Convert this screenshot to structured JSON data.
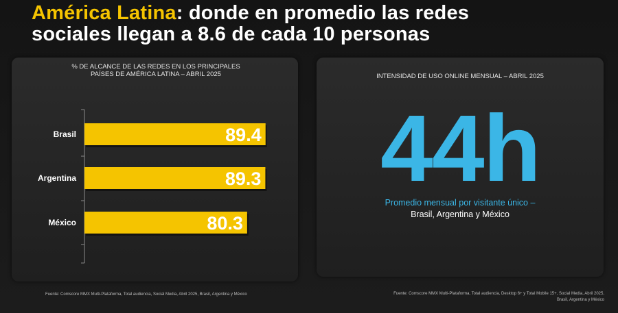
{
  "title": {
    "highlight": "América Latina",
    "rest_line1": ": donde en promedio las redes",
    "line2": "sociales llegan a 8.6 de cada 10 personas"
  },
  "left_panel": {
    "heading_line1": "% DE ALCANCE DE LAS REDES EN LOS PRINCIPALES",
    "heading_line2": "PAÍSES DE AMÉRICA LATINA – ABRIL 2025",
    "source": "Fuente: Comscore MMX Multi-Plataforma, Total audiencia, Social Media, Abril 2025, Brasil, Argentina y México"
  },
  "chart_data": {
    "type": "bar",
    "orientation": "horizontal",
    "title": "% DE ALCANCE DE LAS REDES EN LOS PRINCIPALES PAÍSES DE AMÉRICA LATINA – ABRIL 2025",
    "categories": [
      "Brasil",
      "Argentina",
      "México"
    ],
    "values": [
      89.4,
      89.3,
      80.3
    ],
    "value_labels": [
      "89.4",
      "89.3",
      "80.3"
    ],
    "bar_color": "#f5c400",
    "xlim": [
      0,
      100
    ],
    "grid": false,
    "legend": "none"
  },
  "right_panel": {
    "heading": "INTENSIDAD DE USO ONLINE MENSUAL – ABRIL 2025",
    "big_number": "44h",
    "caption_line1": "Promedio mensual por visitante único –",
    "caption_line2": "Brasil, Argentina y México",
    "source_line1": "Fuente: Comscore MMX Multi-Plataforma, Total audiencia, Desktop 6+ y Total Mobile 15+, Social Media, Abril 2025,",
    "source_line2": "Brasil, Argentina y México"
  },
  "colors": {
    "accent_yellow": "#f5c400",
    "accent_blue": "#3bb6e6",
    "background": "#171717"
  }
}
